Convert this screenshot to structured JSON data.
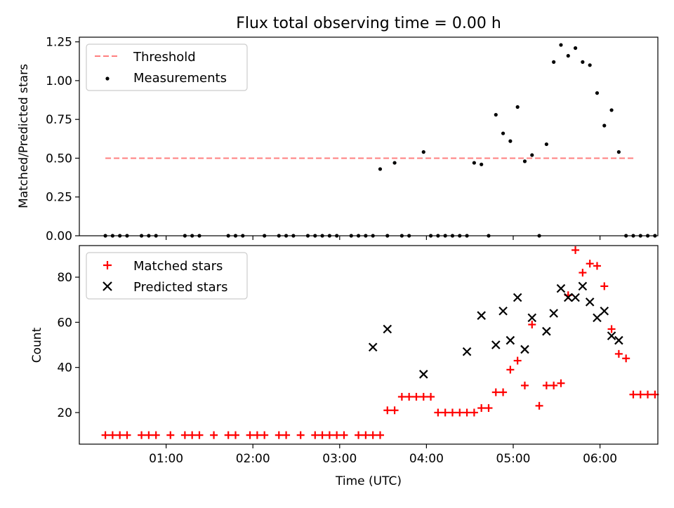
{
  "chart_data": [
    {
      "type": "scatter",
      "title": "Flux total observing time = 0.00 h",
      "xlabel": "",
      "ylabel": "Matched/Predicted stars",
      "xlim": [
        "00:00",
        "06:40"
      ],
      "ylim": [
        0,
        1.28
      ],
      "yticks": [
        0.0,
        0.25,
        0.5,
        0.75,
        1.0,
        1.25
      ],
      "ytick_labels": [
        "0.00",
        "0.25",
        "0.50",
        "0.75",
        "1.00",
        "1.25"
      ],
      "legend_position": "top-left",
      "series": [
        {
          "name": "Threshold",
          "style": "dashed-line",
          "color": "#ff7f7f",
          "x": [
            "00:18",
            "06:24"
          ],
          "y": [
            0.5,
            0.5
          ]
        },
        {
          "name": "Measurements",
          "style": "dot",
          "color": "#000000",
          "x": [
            "00:18",
            "00:23",
            "00:28",
            "00:33",
            "00:43",
            "00:48",
            "00:53",
            "01:13",
            "01:18",
            "01:23",
            "01:43",
            "01:48",
            "01:53",
            "02:08",
            "02:18",
            "02:23",
            "02:28",
            "02:38",
            "02:43",
            "02:48",
            "02:53",
            "02:58",
            "03:08",
            "03:13",
            "03:18",
            "03:23",
            "03:28",
            "03:33",
            "03:38",
            "03:43",
            "03:48",
            "03:58",
            "04:03",
            "04:08",
            "04:13",
            "04:18",
            "04:23",
            "04:28",
            "04:33",
            "04:38",
            "04:43",
            "04:48",
            "04:53",
            "04:58",
            "05:03",
            "05:08",
            "05:13",
            "05:18",
            "05:23",
            "05:28",
            "05:33",
            "05:38",
            "05:43",
            "05:48",
            "05:53",
            "05:58",
            "06:03",
            "06:08",
            "06:13",
            "06:18",
            "06:23",
            "06:28",
            "06:33",
            "06:38"
          ],
          "y": [
            0,
            0,
            0,
            0,
            0,
            0,
            0,
            0,
            0,
            0,
            0,
            0,
            0,
            0,
            0,
            0,
            0,
            0,
            0,
            0,
            0,
            0,
            0,
            0,
            0,
            0,
            0.43,
            0,
            0.47,
            0,
            0,
            0.54,
            0,
            0,
            0,
            0,
            0,
            0,
            0.47,
            0.46,
            0,
            0.78,
            0.66,
            0.61,
            0.83,
            0.48,
            0.52,
            0,
            0.59,
            1.12,
            1.23,
            1.16,
            1.21,
            1.12,
            1.1,
            0.92,
            0.71,
            0.81,
            0.54,
            0,
            0,
            0,
            0,
            0
          ]
        }
      ]
    },
    {
      "type": "scatter",
      "title": "",
      "xlabel": "Time (UTC)",
      "ylabel": "Count",
      "xlim": [
        "00:00",
        "06:40"
      ],
      "ylim": [
        6,
        94
      ],
      "yticks": [
        20,
        40,
        60,
        80
      ],
      "ytick_labels": [
        "20",
        "40",
        "60",
        "80"
      ],
      "xticks": [
        "01:00",
        "02:00",
        "03:00",
        "04:00",
        "05:00",
        "06:00"
      ],
      "xtick_labels": [
        "01:00",
        "02:00",
        "03:00",
        "04:00",
        "05:00",
        "06:00"
      ],
      "legend_position": "top-left",
      "series": [
        {
          "name": "Matched stars",
          "style": "plus",
          "color": "#ff0000",
          "x": [
            "00:18",
            "00:23",
            "00:28",
            "00:33",
            "00:43",
            "00:48",
            "00:53",
            "01:03",
            "01:13",
            "01:18",
            "01:23",
            "01:33",
            "01:43",
            "01:48",
            "01:58",
            "02:03",
            "02:08",
            "02:18",
            "02:23",
            "02:33",
            "02:43",
            "02:48",
            "02:53",
            "02:58",
            "03:03",
            "03:13",
            "03:18",
            "03:23",
            "03:28",
            "03:33",
            "03:38",
            "03:43",
            "03:48",
            "03:53",
            "03:58",
            "04:03",
            "04:08",
            "04:13",
            "04:18",
            "04:23",
            "04:28",
            "04:33",
            "04:38",
            "04:43",
            "04:48",
            "04:53",
            "04:58",
            "05:03",
            "05:08",
            "05:13",
            "05:18",
            "05:23",
            "05:28",
            "05:33",
            "05:38",
            "05:43",
            "05:48",
            "05:53",
            "05:58",
            "06:03",
            "06:08",
            "06:13",
            "06:18",
            "06:23",
            "06:28",
            "06:33",
            "06:38"
          ],
          "y": [
            10,
            10,
            10,
            10,
            10,
            10,
            10,
            10,
            10,
            10,
            10,
            10,
            10,
            10,
            10,
            10,
            10,
            10,
            10,
            10,
            10,
            10,
            10,
            10,
            10,
            10,
            10,
            10,
            10,
            21,
            21,
            27,
            27,
            27,
            27,
            27,
            20,
            20,
            20,
            20,
            20,
            20,
            22,
            22,
            29,
            29,
            39,
            43,
            32,
            59,
            23,
            32,
            32,
            33,
            72,
            92,
            82,
            86,
            85,
            76,
            57,
            46,
            44,
            28,
            28,
            28,
            28
          ]
        },
        {
          "name": "Predicted stars",
          "style": "x",
          "color": "#000000",
          "x": [
            "03:23",
            "03:33",
            "03:58",
            "04:28",
            "04:38",
            "04:48",
            "04:53",
            "04:58",
            "05:03",
            "05:08",
            "05:13",
            "05:23",
            "05:28",
            "05:33",
            "05:38",
            "05:43",
            "05:48",
            "05:53",
            "05:58",
            "06:03",
            "06:08",
            "06:13"
          ],
          "y": [
            49,
            57,
            37,
            47,
            63,
            50,
            65,
            52,
            71,
            48,
            62,
            56,
            64,
            75,
            71,
            71,
            76,
            69,
            62,
            65,
            54,
            52
          ]
        }
      ]
    }
  ]
}
